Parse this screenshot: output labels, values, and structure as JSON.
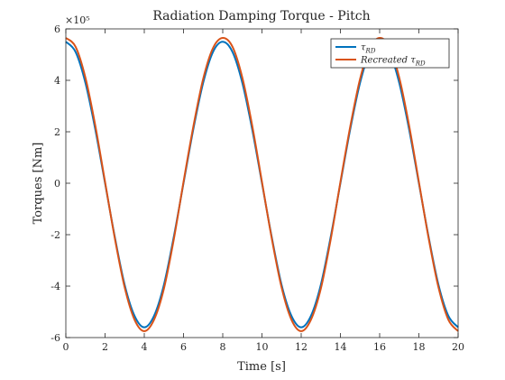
{
  "chart_data": {
    "type": "line",
    "title": "Radiation Damping Torque - Pitch",
    "xlabel": "Time [s]",
    "ylabel": "Torques [Nm]",
    "exponent_label": "×10⁵",
    "xlim": [
      0,
      20
    ],
    "ylim": [
      -6,
      6
    ],
    "y_scale_factor": 100000,
    "xticks": [
      0,
      2,
      4,
      6,
      8,
      10,
      12,
      14,
      16,
      18,
      20
    ],
    "yticks": [
      -6,
      -4,
      -2,
      0,
      2,
      4,
      6
    ],
    "grid": false,
    "legend_position": "top-right",
    "series": [
      {
        "name": "τ_RD",
        "legend_label": "τ",
        "legend_subscript": "RD",
        "color": "#0072BD",
        "x": [
          0,
          0.5,
          1,
          1.5,
          2,
          2.5,
          3,
          3.5,
          4,
          4.5,
          5,
          5.5,
          6,
          6.5,
          7,
          7.5,
          8,
          8.5,
          9,
          9.5,
          10,
          10.5,
          11,
          11.5,
          12,
          12.5,
          13,
          13.5,
          14,
          14.5,
          15,
          15.5,
          16,
          16.5,
          17,
          17.5,
          18,
          18.5,
          19,
          19.5,
          20
        ],
        "y": [
          5.5,
          5.1,
          3.9,
          2.1,
          0.0,
          -2.1,
          -3.95,
          -5.15,
          -5.6,
          -5.15,
          -3.95,
          -2.1,
          0.0,
          2.1,
          3.9,
          5.1,
          5.5,
          5.1,
          3.9,
          2.1,
          0.0,
          -2.1,
          -3.95,
          -5.15,
          -5.6,
          -5.15,
          -3.95,
          -2.1,
          0.0,
          2.1,
          3.9,
          5.1,
          5.5,
          5.1,
          3.9,
          2.1,
          0.0,
          -2.1,
          -3.95,
          -5.15,
          -5.6
        ]
      },
      {
        "name": "Recreated τ_RD",
        "legend_label": "Recreated τ",
        "legend_subscript": "RD",
        "color": "#D95319",
        "x": [
          0,
          0.5,
          1,
          1.5,
          2,
          2.5,
          3,
          3.5,
          4,
          4.5,
          5,
          5.5,
          6,
          6.5,
          7,
          7.5,
          8,
          8.5,
          9,
          9.5,
          10,
          10.5,
          11,
          11.5,
          12,
          12.5,
          13,
          13.5,
          14,
          14.5,
          15,
          15.5,
          16,
          16.5,
          17,
          17.5,
          18,
          18.5,
          19,
          19.5,
          20
        ],
        "y": [
          5.65,
          5.3,
          4.1,
          2.25,
          0.05,
          -2.15,
          -4.05,
          -5.3,
          -5.75,
          -5.3,
          -4.1,
          -2.2,
          0.05,
          2.2,
          4.05,
          5.25,
          5.65,
          5.3,
          4.1,
          2.25,
          0.05,
          -2.15,
          -4.05,
          -5.3,
          -5.75,
          -5.3,
          -4.1,
          -2.2,
          0.05,
          2.2,
          4.05,
          5.25,
          5.65,
          5.3,
          4.1,
          2.25,
          0.05,
          -2.15,
          -4.05,
          -5.3,
          -5.75
        ]
      }
    ]
  }
}
